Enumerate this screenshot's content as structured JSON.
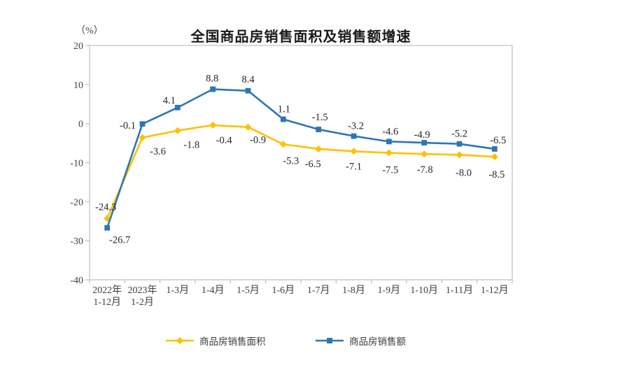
{
  "chart_data": {
    "type": "line",
    "title": "全国商品房销售面积及销售额增速",
    "ylabel": "（%）",
    "ylim": [
      -40,
      20
    ],
    "yticks": [
      20,
      10,
      0,
      -10,
      -20,
      -30,
      -40
    ],
    "grid": false,
    "legend_position": "bottom",
    "categories": [
      "2022年\n1-12月",
      "2023年\n1-2月",
      "1-3月",
      "1-4月",
      "1-5月",
      "1-6月",
      "1-7月",
      "1-8月",
      "1-9月",
      "1-10月",
      "1-11月",
      "1-12月"
    ],
    "series": [
      {
        "name": "商品房销售面积",
        "color": "#FFC000",
        "marker": "diamond",
        "values": [
          -24.3,
          -3.6,
          -1.8,
          -0.4,
          -0.9,
          -5.3,
          -6.5,
          -7.1,
          -7.5,
          -7.8,
          -8.0,
          -8.5
        ]
      },
      {
        "name": "商品房销售额",
        "color": "#2E75B6",
        "marker": "square",
        "values": [
          -26.7,
          -0.1,
          4.1,
          8.8,
          8.4,
          1.1,
          -1.5,
          -3.2,
          -4.6,
          -4.9,
          -5.2,
          -6.5
        ]
      }
    ],
    "axis_color": "#BFBFBF",
    "tick_label_color": "#404040",
    "data_label_color": "#262626"
  }
}
